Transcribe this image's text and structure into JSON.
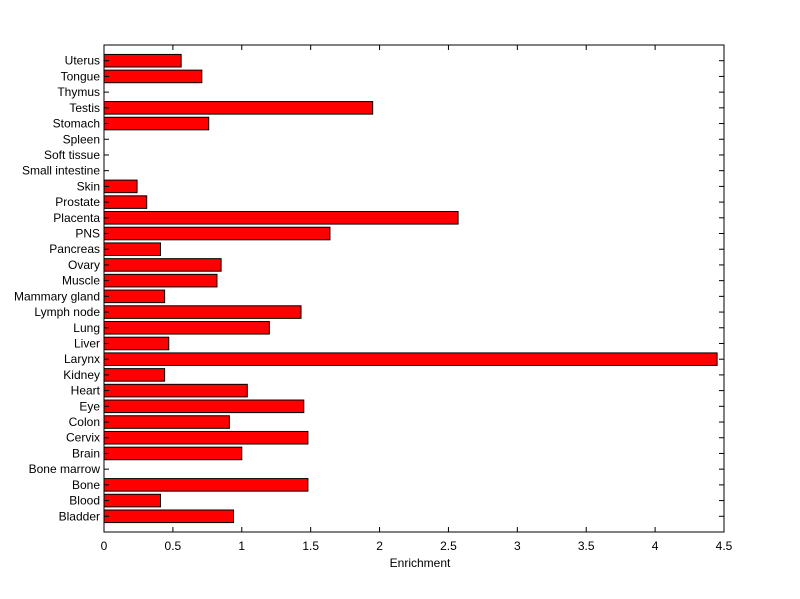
{
  "chart_data": {
    "type": "bar",
    "orientation": "horizontal",
    "xlabel": "Enrichment",
    "ylabel": "",
    "title": "",
    "xlim": [
      0,
      4.5
    ],
    "xticks": [
      0,
      0.5,
      1,
      1.5,
      2,
      2.5,
      3,
      3.5,
      4,
      4.5
    ],
    "xtick_labels": [
      "0",
      "0.5",
      "1",
      "1.5",
      "2",
      "2.5",
      "3",
      "3.5",
      "4",
      "4.5"
    ],
    "grid": false,
    "bar_color": "#ff0000",
    "bar_edge_color": "#000000",
    "categories": [
      "Bladder",
      "Blood",
      "Bone",
      "Bone marrow",
      "Brain",
      "Cervix",
      "Colon",
      "Eye",
      "Heart",
      "Kidney",
      "Larynx",
      "Liver",
      "Lung",
      "Lymph node",
      "Mammary gland",
      "Muscle",
      "Ovary",
      "Pancreas",
      "PNS",
      "Placenta",
      "Prostate",
      "Skin",
      "Small intestine",
      "Soft tissue",
      "Spleen",
      "Stomach",
      "Testis",
      "Thymus",
      "Tongue",
      "Uterus"
    ],
    "values": [
      0.94,
      0.41,
      1.48,
      0,
      1.0,
      1.48,
      0.91,
      1.45,
      1.04,
      0.44,
      4.45,
      0.47,
      1.2,
      1.43,
      0.44,
      0.82,
      0.85,
      0.41,
      1.64,
      2.57,
      0.31,
      0.24,
      0,
      0,
      0,
      0.76,
      1.95,
      0,
      0.71,
      0.56
    ]
  }
}
